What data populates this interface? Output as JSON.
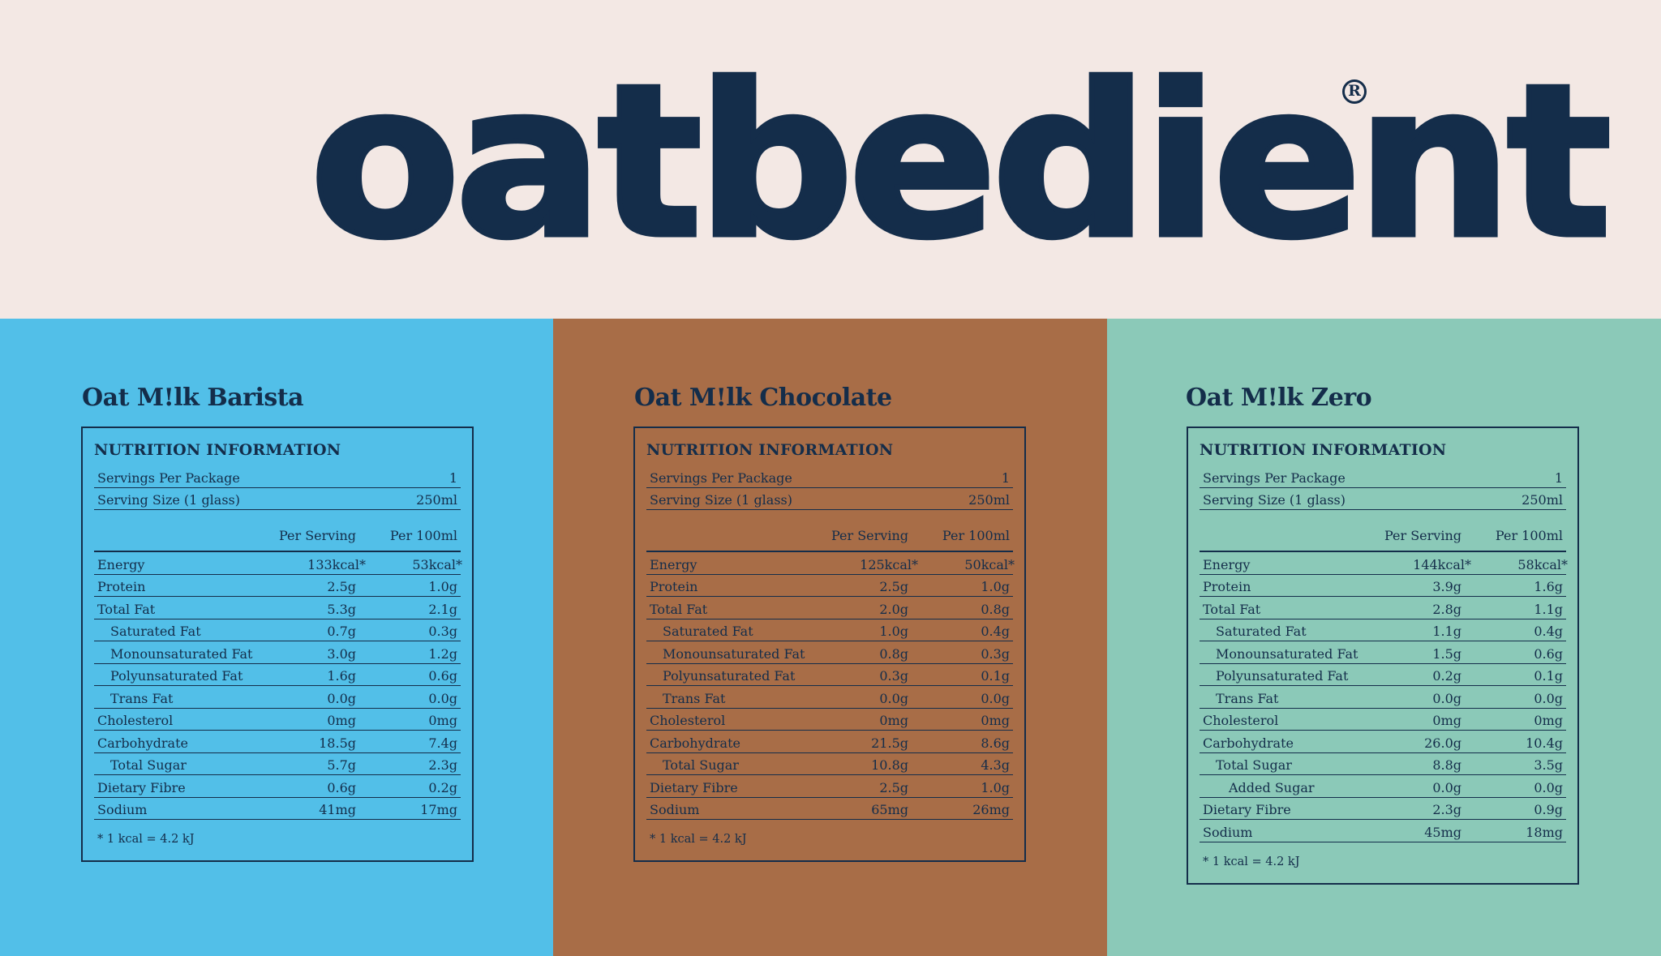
{
  "brand": {
    "logo_text": "oatbedient",
    "registered_mark": "R",
    "background": "#f3e8e4",
    "ink": "#142d4a"
  },
  "products": [
    {
      "title": "Oat M!lk Barista",
      "panel_color": "#52bfe8",
      "box_title": "NUTRITION INFORMATION",
      "servings_label": "Servings Per Package",
      "servings_value": "1",
      "size_label": "Serving Size (1 glass)",
      "size_value": "250ml",
      "col_per_serving": "Per Serving",
      "col_per_100": "Per 100ml",
      "rows": [
        {
          "label": "Energy",
          "per_serving": "133kcal*",
          "per_100": "53kcal*",
          "indent": 0
        },
        {
          "label": "Protein",
          "per_serving": "2.5g",
          "per_100": "1.0g",
          "indent": 0
        },
        {
          "label": "Total Fat",
          "per_serving": "5.3g",
          "per_100": "2.1g",
          "indent": 0
        },
        {
          "label": "Saturated Fat",
          "per_serving": "0.7g",
          "per_100": "0.3g",
          "indent": 1
        },
        {
          "label": "Monounsaturated Fat",
          "per_serving": "3.0g",
          "per_100": "1.2g",
          "indent": 1
        },
        {
          "label": "Polyunsaturated Fat",
          "per_serving": "1.6g",
          "per_100": "0.6g",
          "indent": 1
        },
        {
          "label": "Trans Fat",
          "per_serving": "0.0g",
          "per_100": "0.0g",
          "indent": 1
        },
        {
          "label": "Cholesterol",
          "per_serving": "0mg",
          "per_100": "0mg",
          "indent": 0
        },
        {
          "label": "Carbohydrate",
          "per_serving": "18.5g",
          "per_100": "7.4g",
          "indent": 0
        },
        {
          "label": "Total Sugar",
          "per_serving": "5.7g",
          "per_100": "2.3g",
          "indent": 1
        },
        {
          "label": "Dietary Fibre",
          "per_serving": "0.6g",
          "per_100": "0.2g",
          "indent": 0
        },
        {
          "label": "Sodium",
          "per_serving": "41mg",
          "per_100": "17mg",
          "indent": 0
        }
      ],
      "footnote": "* 1 kcal = 4.2 kJ"
    },
    {
      "title": "Oat M!lk Chocolate",
      "panel_color": "#a86d47",
      "box_title": "NUTRITION INFORMATION",
      "servings_label": "Servings Per Package",
      "servings_value": "1",
      "size_label": "Serving Size (1 glass)",
      "size_value": "250ml",
      "col_per_serving": "Per Serving",
      "col_per_100": "Per 100ml",
      "rows": [
        {
          "label": "Energy",
          "per_serving": "125kcal*",
          "per_100": "50kcal*",
          "indent": 0
        },
        {
          "label": "Protein",
          "per_serving": "2.5g",
          "per_100": "1.0g",
          "indent": 0
        },
        {
          "label": "Total Fat",
          "per_serving": "2.0g",
          "per_100": "0.8g",
          "indent": 0
        },
        {
          "label": "Saturated Fat",
          "per_serving": "1.0g",
          "per_100": "0.4g",
          "indent": 1
        },
        {
          "label": "Monounsaturated Fat",
          "per_serving": "0.8g",
          "per_100": "0.3g",
          "indent": 1
        },
        {
          "label": "Polyunsaturated Fat",
          "per_serving": "0.3g",
          "per_100": "0.1g",
          "indent": 1
        },
        {
          "label": "Trans Fat",
          "per_serving": "0.0g",
          "per_100": "0.0g",
          "indent": 1
        },
        {
          "label": "Cholesterol",
          "per_serving": "0mg",
          "per_100": "0mg",
          "indent": 0
        },
        {
          "label": "Carbohydrate",
          "per_serving": "21.5g",
          "per_100": "8.6g",
          "indent": 0
        },
        {
          "label": "Total Sugar",
          "per_serving": "10.8g",
          "per_100": "4.3g",
          "indent": 1
        },
        {
          "label": "Dietary Fibre",
          "per_serving": "2.5g",
          "per_100": "1.0g",
          "indent": 0
        },
        {
          "label": "Sodium",
          "per_serving": "65mg",
          "per_100": "26mg",
          "indent": 0
        }
      ],
      "footnote": "* 1 kcal = 4.2 kJ"
    },
    {
      "title": "Oat M!lk Zero",
      "panel_color": "#8bc9b8",
      "box_title": "NUTRITION INFORMATION",
      "servings_label": "Servings Per Package",
      "servings_value": "1",
      "size_label": "Serving Size (1 glass)",
      "size_value": "250ml",
      "col_per_serving": "Per Serving",
      "col_per_100": "Per 100ml",
      "rows": [
        {
          "label": "Energy",
          "per_serving": "144kcal*",
          "per_100": "58kcal*",
          "indent": 0
        },
        {
          "label": "Protein",
          "per_serving": "3.9g",
          "per_100": "1.6g",
          "indent": 0
        },
        {
          "label": "Total Fat",
          "per_serving": "2.8g",
          "per_100": "1.1g",
          "indent": 0
        },
        {
          "label": "Saturated Fat",
          "per_serving": "1.1g",
          "per_100": "0.4g",
          "indent": 1
        },
        {
          "label": "Monounsaturated Fat",
          "per_serving": "1.5g",
          "per_100": "0.6g",
          "indent": 1
        },
        {
          "label": "Polyunsaturated Fat",
          "per_serving": "0.2g",
          "per_100": "0.1g",
          "indent": 1
        },
        {
          "label": "Trans Fat",
          "per_serving": "0.0g",
          "per_100": "0.0g",
          "indent": 1
        },
        {
          "label": "Cholesterol",
          "per_serving": "0mg",
          "per_100": "0mg",
          "indent": 0
        },
        {
          "label": "Carbohydrate",
          "per_serving": "26.0g",
          "per_100": "10.4g",
          "indent": 0
        },
        {
          "label": "Total Sugar",
          "per_serving": "8.8g",
          "per_100": "3.5g",
          "indent": 1
        },
        {
          "label": "Added Sugar",
          "per_serving": "0.0g",
          "per_100": "0.0g",
          "indent": 2
        },
        {
          "label": "Dietary Fibre",
          "per_serving": "2.3g",
          "per_100": "0.9g",
          "indent": 0
        },
        {
          "label": "Sodium",
          "per_serving": "45mg",
          "per_100": "18mg",
          "indent": 0
        }
      ],
      "footnote": "* 1 kcal = 4.2 kJ"
    }
  ]
}
